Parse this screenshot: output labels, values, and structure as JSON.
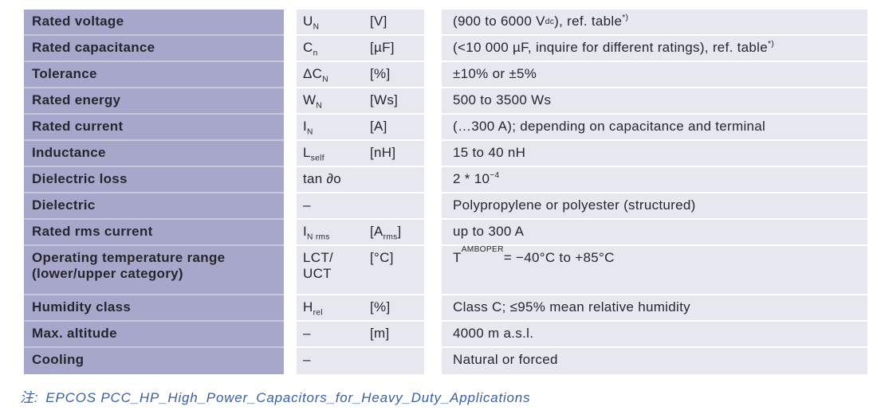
{
  "colors": {
    "page_bg": "#ffffff",
    "label_col_bg": "#a7a7cb",
    "data_col_bg": "#e7e7f0",
    "label_divider": "#c9c9de",
    "data_divider": "#ffffff",
    "text": "#26262e",
    "caption_text": "#3a5f9f"
  },
  "table": {
    "rows": [
      {
        "label": [
          {
            "t": "Rated voltage"
          }
        ],
        "symbol": [
          {
            "t": "U"
          },
          {
            "sub": "N"
          }
        ],
        "unit": [
          {
            "t": "[V]"
          }
        ],
        "value": [
          {
            "t": "(900 to 6000 V"
          },
          {
            "sub": "dc"
          },
          {
            "t": "), ref. table"
          },
          {
            "sup": "*)"
          }
        ]
      },
      {
        "label": [
          {
            "t": "Rated capacitance"
          }
        ],
        "symbol": [
          {
            "t": "C"
          },
          {
            "sub": "n"
          }
        ],
        "unit": [
          {
            "t": "[µF]"
          }
        ],
        "value": [
          {
            "t": "(<10 000 µF, inquire for different ratings), ref. table"
          },
          {
            "sup": "*)"
          }
        ]
      },
      {
        "label": [
          {
            "t": "Tolerance"
          }
        ],
        "symbol": [
          {
            "t": "ΔC"
          },
          {
            "sub": "N"
          }
        ],
        "unit": [
          {
            "t": "[%]"
          }
        ],
        "value": [
          {
            "t": "±10% or ±5%"
          }
        ]
      },
      {
        "label": [
          {
            "t": "Rated energy"
          }
        ],
        "symbol": [
          {
            "t": "W"
          },
          {
            "sub": "N"
          }
        ],
        "unit": [
          {
            "t": "[Ws]"
          }
        ],
        "value": [
          {
            "t": "500 to 3500 Ws"
          }
        ]
      },
      {
        "label": [
          {
            "t": "Rated current"
          }
        ],
        "symbol": [
          {
            "t": "I"
          },
          {
            "sub": "N"
          }
        ],
        "unit": [
          {
            "t": "[A]"
          }
        ],
        "value": [
          {
            "t": "(…300 A); depending on capacitance and terminal"
          }
        ]
      },
      {
        "label": [
          {
            "t": "Inductance"
          }
        ],
        "symbol": [
          {
            "t": "L"
          },
          {
            "sub": "self"
          }
        ],
        "unit": [
          {
            "t": "[nH]"
          }
        ],
        "value": [
          {
            "t": "15 to 40 nH"
          }
        ]
      },
      {
        "label": [
          {
            "t": "Dielectric loss"
          }
        ],
        "symbol": [
          {
            "t": "tan ∂o"
          }
        ],
        "unit": [],
        "value": [
          {
            "t": "2 * 10"
          },
          {
            "sup": "−4"
          }
        ]
      },
      {
        "label": [
          {
            "t": "Dielectric"
          }
        ],
        "symbol": [
          {
            "t": "–"
          }
        ],
        "unit": [],
        "value": [
          {
            "t": "Polypropylene or polyester (structured)"
          }
        ]
      },
      {
        "label": [
          {
            "t": "Rated rms current"
          }
        ],
        "symbol": [
          {
            "t": "I"
          },
          {
            "sub": "N rms"
          }
        ],
        "unit": [
          {
            "t": "[A"
          },
          {
            "sub": "rms"
          },
          {
            "t": "]"
          }
        ],
        "value": [
          {
            "t": "up to 300 A"
          }
        ]
      },
      {
        "tall": true,
        "label": [
          {
            "t": "Operating temperature range"
          },
          {
            "br": true
          },
          {
            "t": "(lower/upper category)"
          }
        ],
        "symbol": [
          {
            "t": "LCT/"
          },
          {
            "br": true
          },
          {
            "t": "UCT"
          }
        ],
        "unit": [
          {
            "t": "[°C]"
          }
        ],
        "value": [
          {
            "t": "T"
          },
          {
            "sub": "AMBOPER"
          },
          {
            "t": " = −40°C to +85°C"
          }
        ]
      },
      {
        "label": [
          {
            "t": "Humidity class"
          }
        ],
        "symbol": [
          {
            "t": "H"
          },
          {
            "sub": "rel"
          }
        ],
        "unit": [
          {
            "t": "[%]"
          }
        ],
        "value": [
          {
            "t": "Class C; ≤95% mean relative humidity"
          }
        ]
      },
      {
        "label": [
          {
            "t": "Max. altitude"
          }
        ],
        "symbol": [
          {
            "t": "–"
          }
        ],
        "unit": [
          {
            "t": "[m]"
          }
        ],
        "value": [
          {
            "t": "4000 m a.s.l."
          }
        ]
      },
      {
        "label": [
          {
            "t": "Cooling"
          }
        ],
        "symbol": [
          {
            "t": "–"
          }
        ],
        "unit": [],
        "value": [
          {
            "t": "Natural or forced"
          }
        ]
      }
    ]
  },
  "caption": {
    "prefix": "注:",
    "source": "EPCOS PCC_HP_High_Power_Capacitors_for_Heavy_Duty_Applications"
  }
}
